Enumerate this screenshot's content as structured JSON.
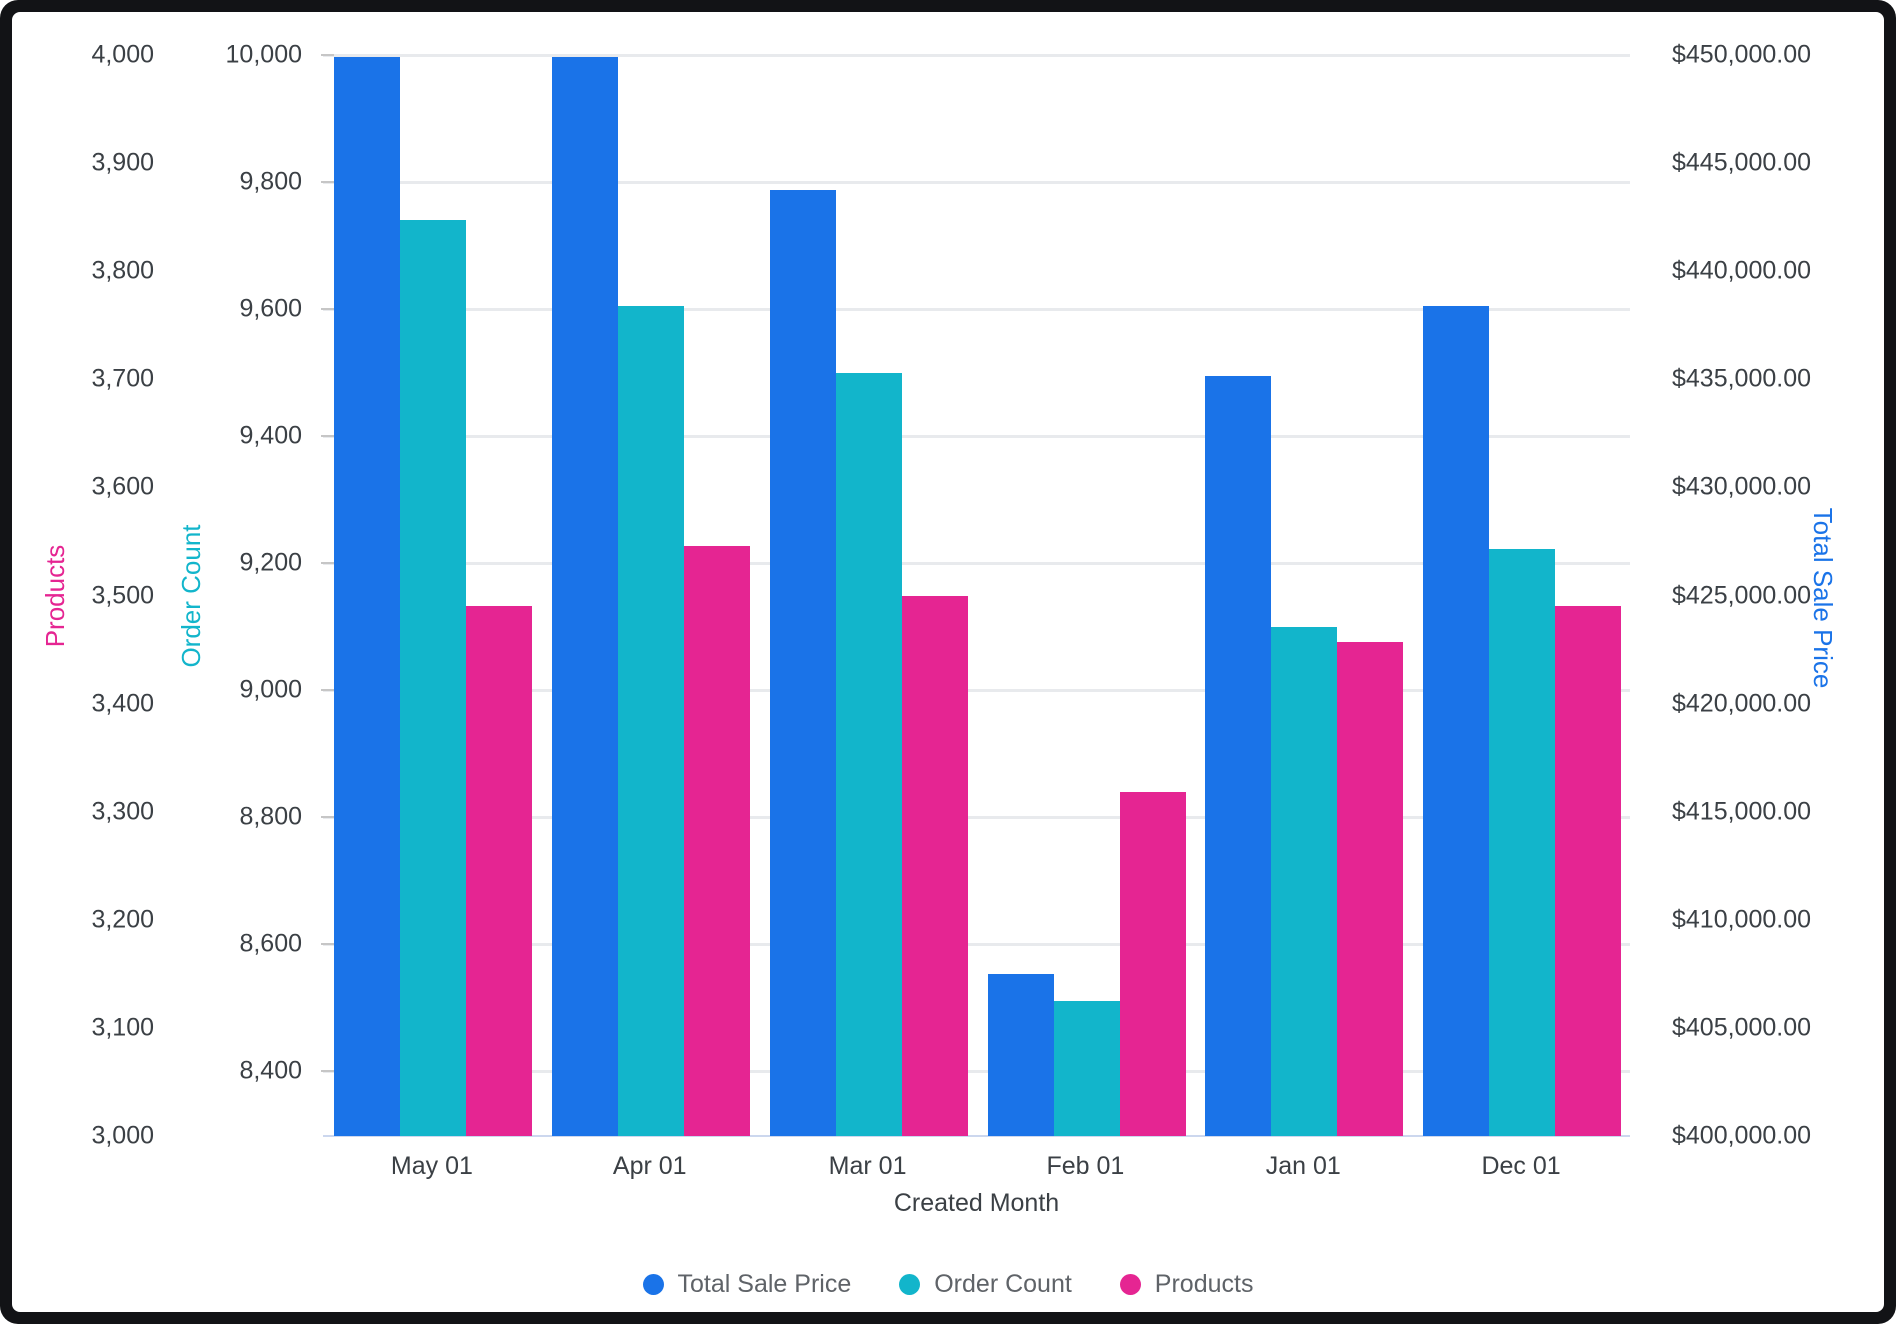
{
  "chart_data": {
    "type": "bar",
    "title": "",
    "xlabel": "Created Month",
    "categories": [
      "May 01",
      "Apr 01",
      "Mar 01",
      "Feb 01",
      "Jan 01",
      "Dec 01"
    ],
    "series": [
      {
        "name": "Total Sale Price",
        "color": "#1A73E8",
        "axis": "sale_price",
        "values": [
          449900,
          449900,
          443750,
          407500,
          435150,
          438400
        ]
      },
      {
        "name": "Order Count",
        "color": "#12B5CB",
        "axis": "order_count",
        "values": [
          9740,
          9605,
          9500,
          8510,
          9100,
          9222
        ]
      },
      {
        "name": "Products",
        "color": "#E52592",
        "axis": "products",
        "values": [
          3490,
          3546,
          3500,
          3318,
          3457,
          3490
        ]
      }
    ],
    "axes": {
      "products": {
        "title": "Products",
        "color": "#E52592",
        "side": "left-outer",
        "range": [
          3000,
          4000
        ],
        "ticks": [
          {
            "v": 3000,
            "label": "3,000"
          },
          {
            "v": 3100,
            "label": "3,100"
          },
          {
            "v": 3200,
            "label": "3,200"
          },
          {
            "v": 3300,
            "label": "3,300"
          },
          {
            "v": 3400,
            "label": "3,400"
          },
          {
            "v": 3500,
            "label": "3,500"
          },
          {
            "v": 3600,
            "label": "3,600"
          },
          {
            "v": 3700,
            "label": "3,700"
          },
          {
            "v": 3800,
            "label": "3,800"
          },
          {
            "v": 3900,
            "label": "3,900"
          },
          {
            "v": 4000,
            "label": "4,000"
          }
        ]
      },
      "order_count": {
        "title": "Order Count",
        "color": "#12B5CB",
        "side": "left-inner",
        "range": [
          8298,
          10000
        ],
        "ticks": [
          {
            "v": 8400,
            "label": "8,400"
          },
          {
            "v": 8600,
            "label": "8,600"
          },
          {
            "v": 8800,
            "label": "8,800"
          },
          {
            "v": 9000,
            "label": "9,000"
          },
          {
            "v": 9200,
            "label": "9,200"
          },
          {
            "v": 9400,
            "label": "9,400"
          },
          {
            "v": 9600,
            "label": "9,600"
          },
          {
            "v": 9800,
            "label": "9,800"
          },
          {
            "v": 10000,
            "label": "10,000"
          }
        ]
      },
      "sale_price": {
        "title": "Total Sale Price",
        "color": "#1A73E8",
        "side": "right",
        "range": [
          400000,
          450000
        ],
        "ticks": [
          {
            "v": 400000,
            "label": "$400,000.00"
          },
          {
            "v": 405000,
            "label": "$405,000.00"
          },
          {
            "v": 410000,
            "label": "$410,000.00"
          },
          {
            "v": 415000,
            "label": "$415,000.00"
          },
          {
            "v": 420000,
            "label": "$420,000.00"
          },
          {
            "v": 425000,
            "label": "$425,000.00"
          },
          {
            "v": 430000,
            "label": "$430,000.00"
          },
          {
            "v": 435000,
            "label": "$435,000.00"
          },
          {
            "v": 440000,
            "label": "$440,000.00"
          },
          {
            "v": 445000,
            "label": "$445,000.00"
          },
          {
            "v": 450000,
            "label": "$450,000.00"
          }
        ]
      }
    },
    "grid": {
      "follows_axis": "order_count",
      "color": "#e8eaed"
    },
    "legend_position": "bottom"
  }
}
